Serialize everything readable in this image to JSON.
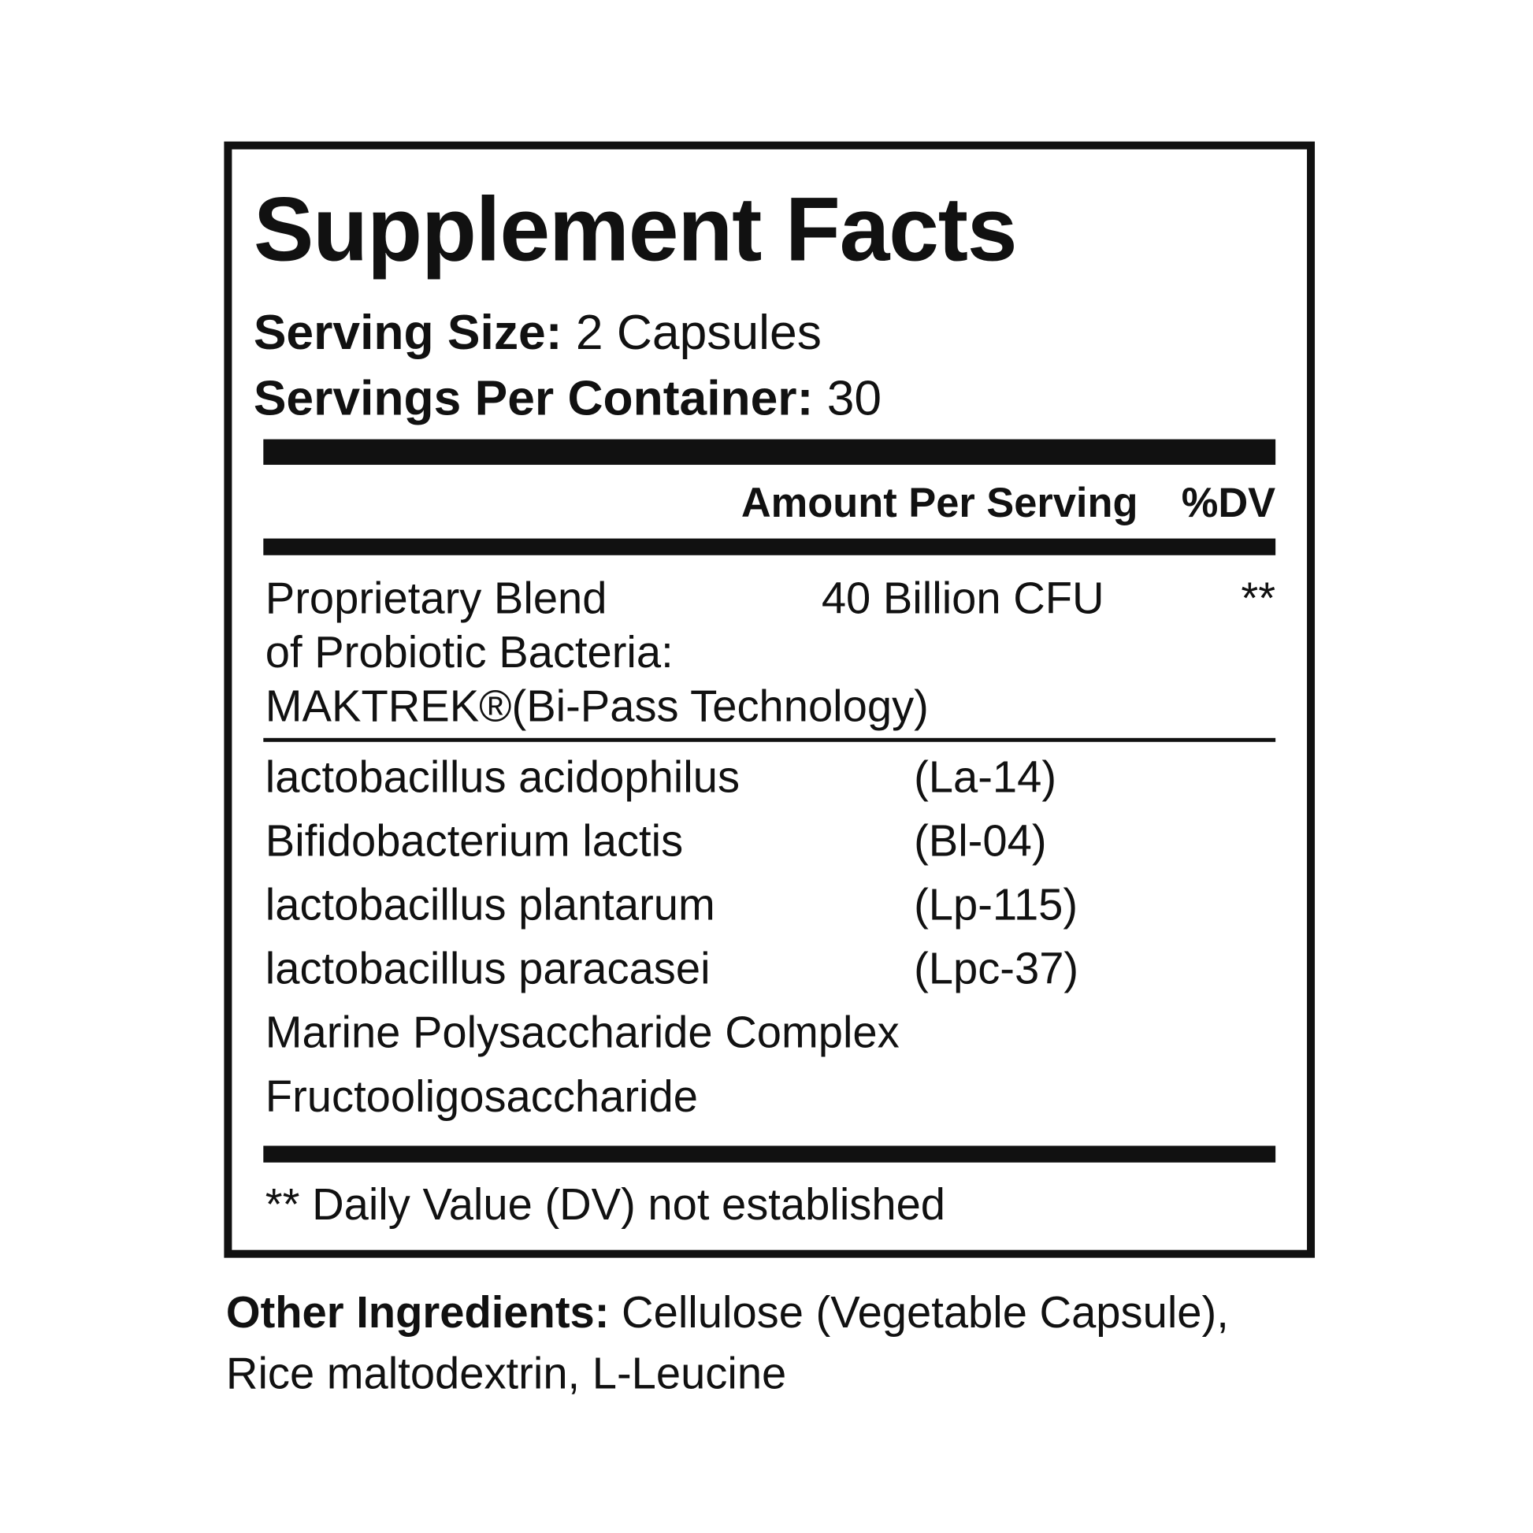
{
  "title": "Supplement Facts",
  "serving_size": {
    "label": "Serving Size:",
    "value": "2 Capsules"
  },
  "servings_per_container": {
    "label": "Servings Per Container:",
    "value": "30"
  },
  "header": {
    "amount": "Amount Per Serving",
    "dv": "%DV"
  },
  "blend": {
    "lines": [
      "Proprietary Blend",
      "of Probiotic Bacteria:",
      "MAKTREK®(Bi-Pass Technology)"
    ],
    "amount": "40 Billion CFU",
    "dv": "**"
  },
  "ingredients": [
    {
      "name": "lactobacillus acidophilus",
      "strain": "(La-14)"
    },
    {
      "name": "Bifidobacterium lactis",
      "strain": "(Bl-04)"
    },
    {
      "name": "lactobacillus plantarum",
      "strain": "(Lp-115)"
    },
    {
      "name": "lactobacillus paracasei",
      "strain": "(Lpc-37)"
    },
    {
      "name": "Marine Polysaccharide Complex",
      "strain": ""
    },
    {
      "name": "Fructooligosaccharide",
      "strain": ""
    }
  ],
  "footnote": "** Daily Value (DV) not established",
  "other_ingredients": {
    "label": "Other Ingredients:",
    "line1": "Cellulose (Vegetable Capsule),",
    "line2": "Rice maltodextrin, L-Leucine"
  }
}
